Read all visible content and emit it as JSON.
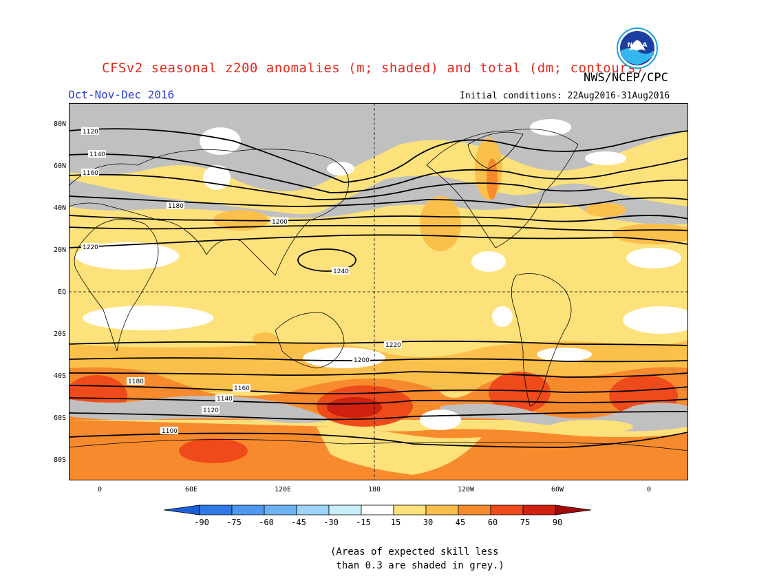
{
  "header": {
    "title": "CFSv2 seasonal z200 anomalies (m; shaded) and total (dm; contours)",
    "agency": "NWS/NCEP/CPC",
    "period": "Oct-Nov-Dec 2016",
    "initial_conditions": "Initial conditions: 22Aug2016-31Aug2016"
  },
  "logo": {
    "text": "NOAA",
    "icon": "noaa-logo-icon"
  },
  "map": {
    "lat_labels": [
      "80N",
      "60N",
      "40N",
      "20N",
      "EQ",
      "20S",
      "40S",
      "60S",
      "80S"
    ],
    "lon_labels": [
      "0",
      "60E",
      "120E",
      "180",
      "120W",
      "60W",
      "0"
    ],
    "contour_labels": [
      "1120",
      "1140",
      "1160",
      "1180",
      "1200",
      "1220",
      "1240",
      "1220",
      "1200",
      "1180",
      "1160",
      "1140",
      "1120",
      "1100"
    ],
    "colors": {
      "skill_grey": "#c0c0c0",
      "pos_15_30": "#fde17a",
      "pos_30_45": "#fbbf4c",
      "pos_45_60": "#f78a2d",
      "pos_60_75": "#ef4a1a",
      "pos_75_90": "#c81c0c",
      "neutral": "#ffffff",
      "land_outline": "#000000"
    }
  },
  "colorbar": {
    "labels": [
      "-90",
      "-75",
      "-60",
      "-45",
      "-30",
      "-15",
      "15",
      "30",
      "45",
      "60",
      "75",
      "90"
    ],
    "colors": [
      "#1b5fd8",
      "#2f7ae6",
      "#4f98ef",
      "#6db3f4",
      "#9dd3f8",
      "#c8eef8",
      "#ffffff",
      "#fde17a",
      "#fbbf4c",
      "#f78a2d",
      "#ef4a1a",
      "#d02010",
      "#a00a0a"
    ]
  },
  "footnote": "(Areas of expected skill less\n than 0.3 are shaded in grey.)"
}
